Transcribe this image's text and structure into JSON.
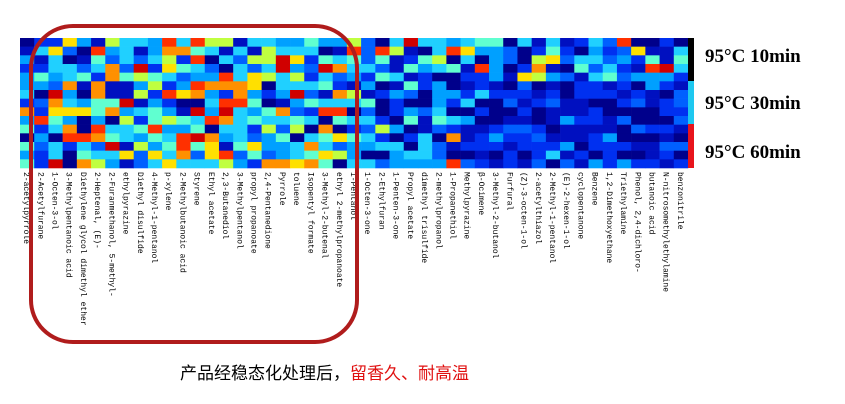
{
  "heatmap": {
    "columns": [
      "2-acetylpyrrole",
      "2-Acetylfurane",
      "1-Octen-3-ol",
      "3-Methylpentanoic acid",
      "Diethylene glycol dimethyl ether",
      "2-Heptenal, (E)-",
      "2-Furanmethanol, 5-methyl-",
      "ethylpyrazine",
      "Diethyl disulfide",
      "4-Methyl-1-pentanol",
      "p-xylene",
      "2-Methylbutanoic acid",
      "Styrene",
      "Ethyl acetate",
      "2,3-Butanediol",
      "3-Methylpentanol",
      "propyl propanoate",
      "2,4-Pentanedione",
      "Pyrrole",
      "toluene",
      "Isopentyl formate",
      "3-Methyl-2-butenal",
      "ethyl 2-methylpropanoate",
      "1-Pentanol",
      "1-Octen-3-one",
      "2-Ethylfuran",
      "1-Penten-3-one",
      "Propyl acetate",
      "dimethyl trisulfide",
      "2-methylpropanol",
      "1-Propanethiol",
      "Methylpyrazine",
      "β-Ocimene",
      "3-Methyl-2-butanol",
      "Furfural",
      "(Z)-3-octen-1-ol",
      "2-acetylthiazol",
      "2-Methyl-1-pentanol",
      "(E)-2-hexen-1-ol",
      "cyclopentanone",
      "Benzene",
      "1,2-Dimethoxyethane",
      "Triethylamine",
      "Phenol, 2,4-dichloro-",
      "butanoic acid",
      "N-nitrosomethylethylamine",
      "benzonitrile"
    ],
    "groups": [
      "95°C 10min",
      "95°C 30min",
      "95°C 60min"
    ]
  },
  "caption": {
    "plain": "产品经稳态化处理后，",
    "highlight": "留香久、耐高温"
  }
}
